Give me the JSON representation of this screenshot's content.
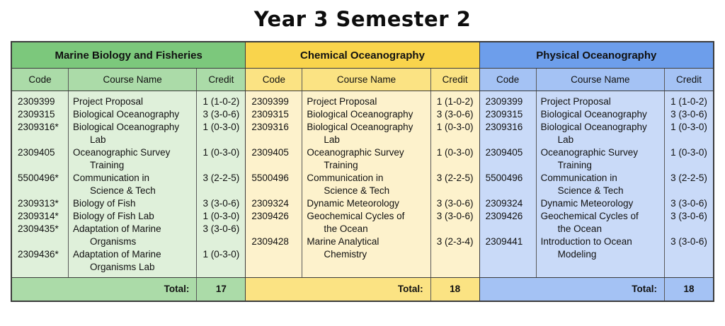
{
  "title": "Year 3 Semester 2",
  "columns_header": {
    "code": "Code",
    "course": "Course Name",
    "credit": "Credit"
  },
  "total_label": "Total:",
  "sections": [
    {
      "name": "Marine Biology and Fisheries",
      "theme": {
        "header": "#7CC87C",
        "subheader": "#ABDBA8",
        "body": "#DFF0DA",
        "total": "#ABDBA8"
      },
      "total": "17",
      "courses": [
        {
          "code": "2309399",
          "name_lines": [
            "Project Proposal"
          ],
          "credit": "1 (1-0-2)"
        },
        {
          "code": "2309315",
          "name_lines": [
            "Biological Oceanography"
          ],
          "credit": "3 (3-0-6)"
        },
        {
          "code": "2309316*",
          "name_lines": [
            "Biological Oceanography",
            "Lab"
          ],
          "credit": "1 (0-3-0)"
        },
        {
          "code": "2309405",
          "name_lines": [
            "Oceanographic Survey",
            "Training"
          ],
          "credit": "1 (0-3-0)"
        },
        {
          "code": "5500496*",
          "name_lines": [
            "Communication in",
            "Science & Tech"
          ],
          "credit": "3 (2-2-5)"
        },
        {
          "code": "2309313*",
          "name_lines": [
            "Biology of Fish"
          ],
          "credit": "3 (3-0-6)"
        },
        {
          "code": "2309314*",
          "name_lines": [
            "Biology of Fish Lab"
          ],
          "credit": "1 (0-3-0)"
        },
        {
          "code": "2309435*",
          "name_lines": [
            "Adaptation of Marine",
            "Organisms"
          ],
          "credit": "3 (3-0-6)"
        },
        {
          "code": "2309436*",
          "name_lines": [
            "Adaptation of Marine",
            "Organisms Lab"
          ],
          "credit": "1 (0-3-0)"
        }
      ]
    },
    {
      "name": "Chemical Oceanography",
      "theme": {
        "header": "#F9D44C",
        "subheader": "#FBE383",
        "body": "#FDF2CC",
        "total": "#FBE383"
      },
      "total": "18",
      "courses": [
        {
          "code": "2309399",
          "name_lines": [
            "Project Proposal"
          ],
          "credit": "1 (1-0-2)"
        },
        {
          "code": "2309315",
          "name_lines": [
            "Biological Oceanography"
          ],
          "credit": "3 (3-0-6)"
        },
        {
          "code": "2309316",
          "name_lines": [
            "Biological Oceanography",
            "Lab"
          ],
          "credit": "1 (0-3-0)"
        },
        {
          "code": "2309405",
          "name_lines": [
            "Oceanographic Survey",
            "Training"
          ],
          "credit": "1 (0-3-0)"
        },
        {
          "code": "5500496",
          "name_lines": [
            "Communication in",
            "Science & Tech"
          ],
          "credit": "3 (2-2-5)"
        },
        {
          "code": "2309324",
          "name_lines": [
            "Dynamic Meteorology"
          ],
          "credit": "3 (3-0-6)"
        },
        {
          "code": "2309426",
          "name_lines": [
            "Geochemical Cycles of",
            "the Ocean"
          ],
          "credit": "3 (3-0-6)"
        },
        {
          "code": "2309428",
          "name_lines": [
            "Marine Analytical",
            "Chemistry"
          ],
          "credit": "3 (2-3-4)"
        }
      ]
    },
    {
      "name": "Physical Oceanography",
      "theme": {
        "header": "#6D9EEB",
        "subheader": "#A4C2F4",
        "body": "#C9DAF8",
        "total": "#A4C2F4"
      },
      "total": "18",
      "courses": [
        {
          "code": "2309399",
          "name_lines": [
            "Project Proposal"
          ],
          "credit": "1 (1-0-2)"
        },
        {
          "code": "2309315",
          "name_lines": [
            "Biological Oceanography"
          ],
          "credit": "3 (3-0-6)"
        },
        {
          "code": "2309316",
          "name_lines": [
            "Biological Oceanography",
            "Lab"
          ],
          "credit": "1 (0-3-0)"
        },
        {
          "code": "2309405",
          "name_lines": [
            "Oceanographic Survey",
            "Training"
          ],
          "credit": "1 (0-3-0)"
        },
        {
          "code": "5500496",
          "name_lines": [
            "Communication in",
            "Science & Tech"
          ],
          "credit": "3 (2-2-5)"
        },
        {
          "code": "2309324",
          "name_lines": [
            "Dynamic Meteorology"
          ],
          "credit": "3 (3-0-6)"
        },
        {
          "code": "2309426",
          "name_lines": [
            "Geochemical Cycles of",
            "the Ocean"
          ],
          "credit": "3 (3-0-6)"
        },
        {
          "code": "2309441",
          "name_lines": [
            "Introduction to Ocean",
            "Modeling"
          ],
          "credit": "3 (3-0-6)"
        }
      ]
    }
  ]
}
